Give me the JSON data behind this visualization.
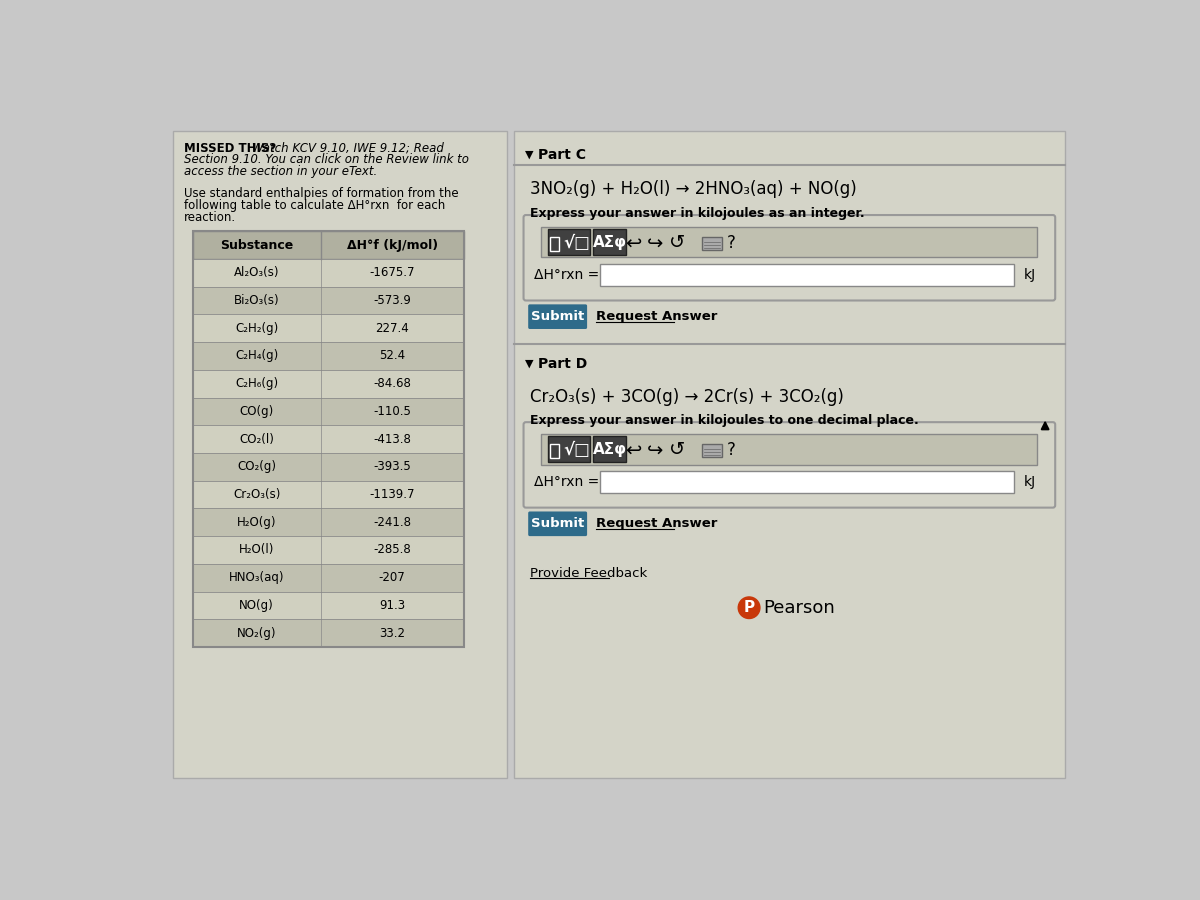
{
  "bg_color": "#c8c8c8",
  "left_panel_bg": "#d4d4c8",
  "right_panel_bg": "#d4d4c8",
  "table_header_substance": "Substance",
  "table_header_dh": "ΔH°f (kJ/mol)",
  "substances": [
    "Al₂O₃(s)",
    "Bi₂O₃(s)",
    "C₂H₂(g)",
    "C₂H₄(g)",
    "C₂H₆(g)",
    "CO(g)",
    "CO₂(l)",
    "CO₂(g)",
    "Cr₂O₃(s)",
    "H₂O(g)",
    "H₂O(l)",
    "HNO₃(aq)",
    "NO(g)",
    "NO₂(g)"
  ],
  "values": [
    "-1675.7",
    "-573.9",
    "227.4",
    "52.4",
    "-84.68",
    "-110.5",
    "-413.8",
    "-393.5",
    "-1139.7",
    "-241.8",
    "-285.8",
    "-207",
    "91.3",
    "33.2"
  ],
  "part_c_label": "Part C",
  "part_c_equation": "3NO₂(g) + H₂O(l) → 2HNO₃(aq) + NO(g)",
  "part_c_instruction": "Express your answer in kilojoules as an integer.",
  "part_c_dh_label": "ΔH°rxn =",
  "part_c_unit": "kJ",
  "part_d_label": "Part D",
  "part_d_equation": "Cr₂O₃(s) + 3CO(g) → 2Cr(s) + 3CO₂(g)",
  "part_d_instruction": "Express your answer in kilojoules to one decimal place.",
  "part_d_dh_label": "ΔH°rxn =",
  "part_d_unit": "kJ",
  "submit_color": "#2e6b8a",
  "submit_text_color": "white",
  "table_row_odd": "#d0d0c0",
  "table_row_even": "#c0c0b0",
  "table_header_color": "#b0b0a0",
  "table_border": "#888888",
  "toolbar_bg": "#c0c0b0",
  "toolbar_dark": "#404040",
  "input_box_color": "white",
  "panel_border": "#aaaaaa",
  "pearson_color": "#c8380a",
  "provide_feedback_color": "black",
  "request_answer_color": "black"
}
